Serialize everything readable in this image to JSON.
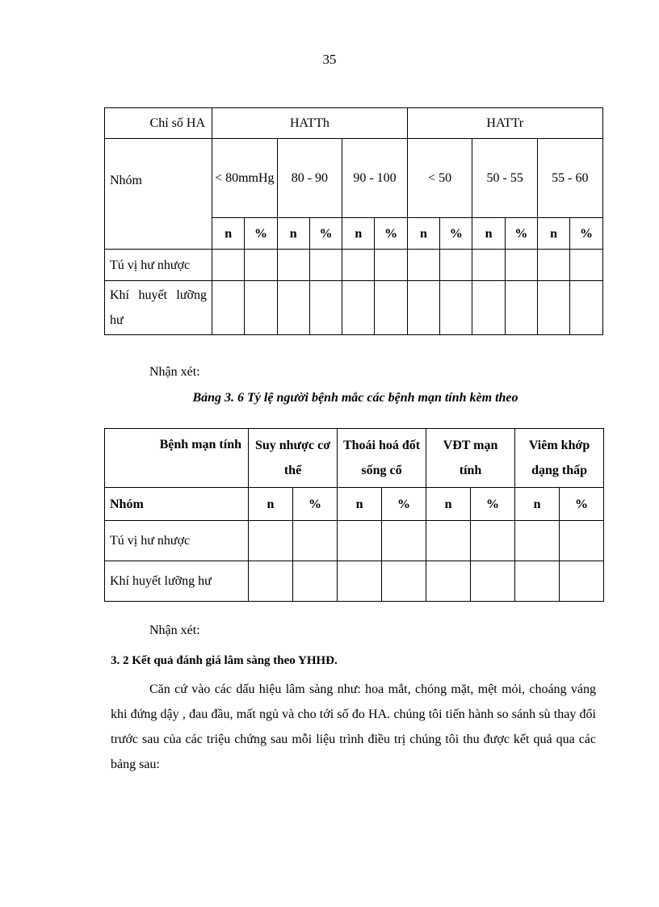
{
  "page_number": "35",
  "table1": {
    "corner_top": "Chỉ số HA",
    "corner_bottom": "Nhóm",
    "groups": [
      "HATTh",
      "HATTr"
    ],
    "ranges": [
      "< 80mmHg",
      "80 - 90",
      "90 - 100",
      "< 50",
      "50 - 55",
      "55 - 60"
    ],
    "sub": [
      "n",
      "%"
    ],
    "rows": [
      "Tú vị hư nhược",
      "Khí huyết lưỡng hư"
    ]
  },
  "remark1": "Nhận xét:",
  "caption2": "Bảng 3. 6 Tỷ lệ người bệnh mắc các bệnh mạn tính kèm theo",
  "table2": {
    "corner_top": "Bệnh mạn tính",
    "corner_bottom": "Nhóm",
    "diseases": [
      "Suy nhược cơ thể",
      "Thoái hoá đốt sống cổ",
      "VĐT mạn tính",
      "Viêm khớp dạng thấp"
    ],
    "sub": [
      "n",
      "%"
    ],
    "rows": [
      "Tú vị hư nhược",
      "Khí huyết lưỡng hư"
    ]
  },
  "remark2": "Nhận xét:",
  "section_heading": "3. 2 Kết quả đánh giá lâm sàng theo YHHĐ.",
  "paragraph": "Căn cứ vào các dấu hiệu lâm sàng như: hoa mắt, chóng mặt, mệt mỏi, choáng váng khi đứng dậy , đau đầu, mất ngủ và cho tới số đo HA. chúng tôi tiến hành so sánh sù thay đổi trước sau của các triệu chứng sau mỗi liệu trình điều trị chúng tôi thu được kết quả qua các bảng sau:"
}
